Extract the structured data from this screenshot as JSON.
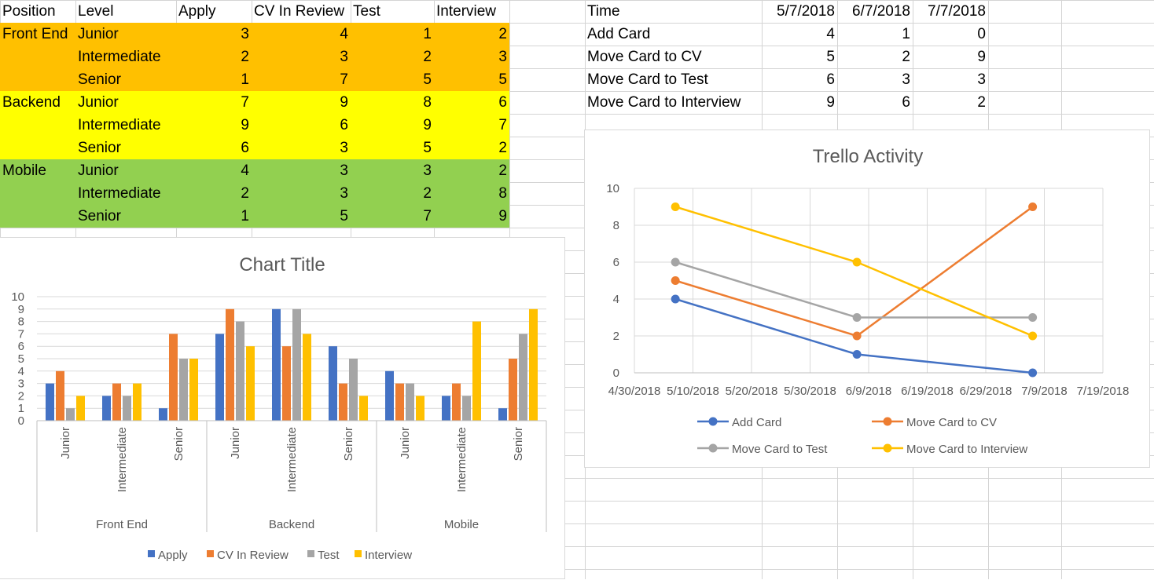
{
  "sheet": {
    "left_table": {
      "headers": [
        "Position",
        "Level",
        "Apply",
        "CV In Review",
        "Test",
        "Interview"
      ],
      "rows": [
        {
          "position": "Front End",
          "level": "Junior",
          "apply": "3",
          "cv": "4",
          "test": "1",
          "interview": "2"
        },
        {
          "position": "",
          "level": "Intermediate",
          "apply": "2",
          "cv": "3",
          "test": "2",
          "interview": "3"
        },
        {
          "position": "",
          "level": "Senior",
          "apply": "1",
          "cv": "7",
          "test": "5",
          "interview": "5"
        },
        {
          "position": "Backend",
          "level": "Junior",
          "apply": "7",
          "cv": "9",
          "test": "8",
          "interview": "6"
        },
        {
          "position": "",
          "level": "Intermediate",
          "apply": "9",
          "cv": "6",
          "test": "9",
          "interview": "7"
        },
        {
          "position": "",
          "level": "Senior",
          "apply": "6",
          "cv": "3",
          "test": "5",
          "interview": "2"
        },
        {
          "position": "Mobile",
          "level": "Junior",
          "apply": "4",
          "cv": "3",
          "test": "3",
          "interview": "2"
        },
        {
          "position": "",
          "level": "Intermediate",
          "apply": "2",
          "cv": "3",
          "test": "2",
          "interview": "8"
        },
        {
          "position": "",
          "level": "Senior",
          "apply": "1",
          "cv": "5",
          "test": "7",
          "interview": "9"
        }
      ],
      "group_colors": [
        "#ffc000",
        "#ffff00",
        "#92d050"
      ]
    },
    "right_table": {
      "headers": [
        "Time",
        "5/7/2018",
        "6/7/2018",
        "7/7/2018"
      ],
      "rows": [
        {
          "label": "Add Card",
          "v1": "4",
          "v2": "1",
          "v3": "0"
        },
        {
          "label": "Move Card to CV",
          "v1": "5",
          "v2": "2",
          "v3": "9"
        },
        {
          "label": "Move Card to Test",
          "v1": "6",
          "v2": "3",
          "v3": "3"
        },
        {
          "label": "Move Card to Interview",
          "v1": "9",
          "v2": "6",
          "v3": "2"
        }
      ]
    }
  },
  "chart_data": [
    {
      "type": "bar",
      "title": "Chart Title",
      "groups": [
        {
          "name": "Front End",
          "categories": [
            "Junior",
            "Intermediate",
            "Senior"
          ]
        },
        {
          "name": "Backend",
          "categories": [
            "Junior",
            "Intermediate",
            "Senior"
          ]
        },
        {
          "name": "Mobile",
          "categories": [
            "Junior",
            "Intermediate",
            "Senior"
          ]
        }
      ],
      "series": [
        {
          "name": "Apply",
          "color": "#4472c4",
          "values": [
            3,
            2,
            1,
            7,
            9,
            6,
            4,
            2,
            1
          ]
        },
        {
          "name": "CV In Review",
          "color": "#ed7d31",
          "values": [
            4,
            3,
            7,
            9,
            6,
            3,
            3,
            3,
            5
          ]
        },
        {
          "name": "Test",
          "color": "#a5a5a5",
          "values": [
            1,
            2,
            5,
            8,
            9,
            5,
            3,
            2,
            7
          ]
        },
        {
          "name": "Interview",
          "color": "#ffc000",
          "values": [
            2,
            3,
            5,
            6,
            7,
            2,
            2,
            8,
            9
          ]
        }
      ],
      "ylim": [
        0,
        10
      ],
      "yticks": [
        0,
        1,
        2,
        3,
        4,
        5,
        6,
        7,
        8,
        9,
        10
      ],
      "legend": "bottom",
      "grid": true
    },
    {
      "type": "line",
      "title": "Trello Activity",
      "x": [
        "2018-05-07",
        "2018-06-07",
        "2018-07-07"
      ],
      "xlim": [
        "2018-04-30",
        "2018-07-19"
      ],
      "xticks": [
        "4/30/2018",
        "5/10/2018",
        "5/20/2018",
        "5/30/2018",
        "6/9/2018",
        "6/19/2018",
        "6/29/2018",
        "7/9/2018",
        "7/19/2018"
      ],
      "xtick_dates": [
        "2018-04-30",
        "2018-05-10",
        "2018-05-20",
        "2018-05-30",
        "2018-06-09",
        "2018-06-19",
        "2018-06-29",
        "2018-07-09",
        "2018-07-19"
      ],
      "series": [
        {
          "name": "Add Card",
          "color": "#4472c4",
          "values": [
            4,
            1,
            0
          ]
        },
        {
          "name": "Move Card to CV",
          "color": "#ed7d31",
          "values": [
            5,
            2,
            9
          ]
        },
        {
          "name": "Move Card to Test",
          "color": "#a5a5a5",
          "values": [
            6,
            3,
            3
          ]
        },
        {
          "name": "Move Card to Interview",
          "color": "#ffc000",
          "values": [
            9,
            6,
            2
          ]
        }
      ],
      "ylim": [
        0,
        10
      ],
      "yticks": [
        0,
        2,
        4,
        6,
        8,
        10
      ],
      "legend": "bottom",
      "grid": true
    }
  ]
}
